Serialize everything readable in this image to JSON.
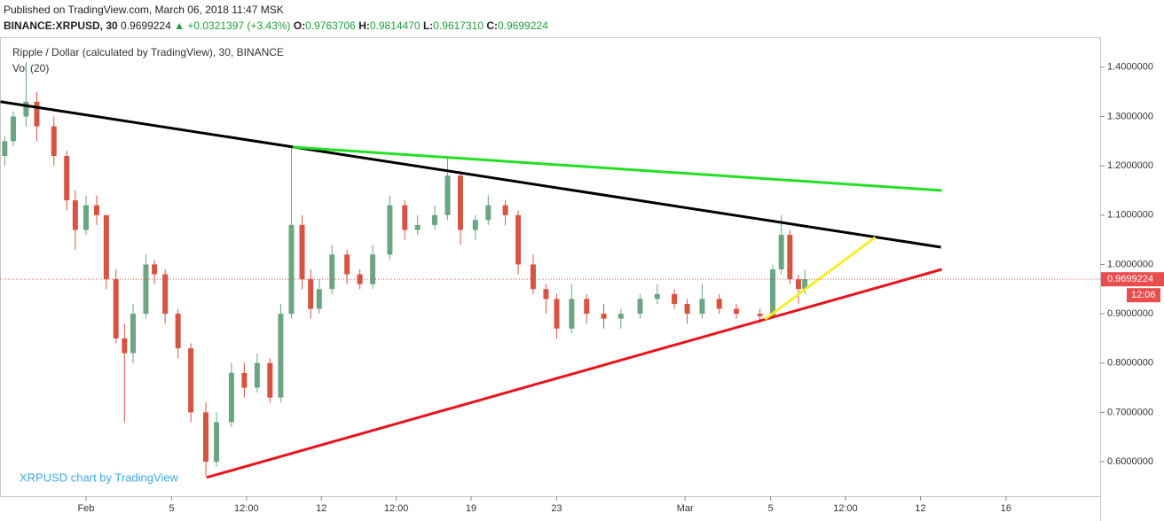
{
  "header": {
    "published": "Published on TradingView.com, March 06, 2018 11:47 MSK",
    "symbol": "BINANCE:XRPUSD, 30",
    "last": "0.9699224",
    "change": "▲ +0.0321397 (+3.43%)",
    "o_label": "O:",
    "o_value": "0.9763706",
    "h_label": "H:",
    "h_value": "0.9814470",
    "l_label": "L:",
    "l_value": "0.9617310",
    "c_label": "C:",
    "c_value": "0.9699224"
  },
  "chart_data": {
    "type": "candlestick",
    "title": "Ripple / Dollar (calculated by TradingView), 30, BINANCE",
    "subtitle": "Vol (20)",
    "watermark": "XRPUSD chart by TradingView",
    "up_color": "#6ba583",
    "down_color": "#d75442",
    "x": [
      -3.8,
      -3.4,
      -2.8,
      -2.3,
      -1.5,
      -0.9,
      -0.5,
      0,
      0.5,
      0.95,
      1.4,
      1.8,
      2.2,
      2.8,
      3.2,
      3.7,
      4.3,
      4.9,
      5.6,
      6.1,
      6.8,
      7.4,
      8.0,
      8.6,
      9.1,
      9.6,
      10.1,
      10.5,
      10.9,
      11.5,
      12.2,
      12.8,
      13.4,
      14.2,
      14.9,
      15.5,
      16.3,
      16.9,
      17.5,
      18.2,
      18.8,
      19.6,
      20.2,
      20.9,
      21.5,
      22.0,
      22.7,
      23.4,
      24.2,
      25.0,
      25.9,
      26.7,
      27.5,
      28.1,
      28.8,
      29.6,
      30.4,
      31.5,
      32.1,
      32.5,
      32.9,
      33.3,
      33.6
    ],
    "open": [
      1.22,
      1.25,
      1.3,
      1.33,
      1.28,
      1.22,
      1.13,
      1.07,
      1.12,
      1.1,
      0.97,
      0.85,
      0.82,
      0.9,
      1.0,
      0.98,
      0.9,
      0.83,
      0.7,
      0.6,
      0.68,
      0.78,
      0.75,
      0.8,
      0.73,
      0.9,
      1.08,
      0.97,
      0.91,
      0.95,
      1.02,
      0.98,
      0.96,
      1.02,
      1.12,
      1.07,
      1.08,
      1.1,
      1.18,
      1.07,
      1.09,
      1.12,
      1.1,
      1.0,
      0.95,
      0.93,
      0.87,
      0.93,
      0.9,
      0.89,
      0.9,
      0.93,
      0.94,
      0.92,
      0.9,
      0.93,
      0.91,
      0.9,
      0.895,
      0.99,
      1.06,
      0.97,
      0.95
    ],
    "high": [
      1.26,
      1.31,
      1.41,
      1.35,
      1.3,
      1.23,
      1.15,
      1.14,
      1.14,
      1.1,
      0.99,
      0.88,
      0.92,
      1.02,
      1.01,
      0.99,
      0.91,
      0.84,
      0.72,
      0.7,
      0.8,
      0.8,
      0.82,
      0.81,
      0.92,
      1.24,
      1.1,
      0.99,
      0.97,
      1.04,
      1.03,
      0.99,
      1.04,
      1.14,
      1.13,
      1.1,
      1.12,
      1.22,
      1.19,
      1.1,
      1.14,
      1.13,
      1.11,
      1.02,
      0.96,
      0.94,
      0.96,
      0.94,
      0.92,
      0.91,
      0.94,
      0.96,
      0.95,
      0.93,
      0.96,
      0.94,
      0.92,
      0.91,
      1.0,
      1.1,
      1.07,
      0.98,
      0.99
    ],
    "low": [
      1.2,
      1.24,
      1.28,
      1.25,
      1.2,
      1.11,
      1.03,
      1.06,
      1.08,
      0.95,
      0.84,
      0.68,
      0.8,
      0.89,
      0.96,
      0.88,
      0.81,
      0.68,
      0.57,
      0.59,
      0.67,
      0.73,
      0.74,
      0.72,
      0.72,
      0.89,
      0.95,
      0.89,
      0.9,
      0.94,
      0.96,
      0.95,
      0.95,
      1.01,
      1.05,
      1.06,
      1.07,
      1.09,
      1.04,
      1.05,
      1.08,
      1.08,
      0.98,
      0.94,
      0.9,
      0.85,
      0.86,
      0.88,
      0.87,
      0.87,
      0.89,
      0.92,
      0.91,
      0.88,
      0.89,
      0.9,
      0.89,
      0.88,
      0.89,
      0.98,
      0.96,
      0.92,
      0.94
    ],
    "close": [
      1.25,
      1.3,
      1.33,
      1.28,
      1.22,
      1.13,
      1.07,
      1.12,
      1.1,
      0.97,
      0.85,
      0.82,
      0.9,
      1.0,
      0.98,
      0.9,
      0.83,
      0.7,
      0.6,
      0.68,
      0.78,
      0.75,
      0.8,
      0.73,
      0.9,
      1.08,
      0.97,
      0.91,
      0.95,
      1.02,
      0.98,
      0.96,
      1.02,
      1.12,
      1.07,
      1.08,
      1.1,
      1.18,
      1.07,
      1.09,
      1.12,
      1.1,
      1.0,
      0.95,
      0.93,
      0.87,
      0.93,
      0.9,
      0.89,
      0.9,
      0.93,
      0.94,
      0.92,
      0.9,
      0.93,
      0.91,
      0.9,
      0.895,
      0.99,
      1.06,
      0.97,
      0.95,
      0.97
    ],
    "trendlines": [
      {
        "color": "#000000",
        "x": [
          -4,
          39.96
        ],
        "y": [
          1.33,
          1.035
        ]
      },
      {
        "color": "#22e022",
        "x": [
          9.67,
          40.0
        ],
        "y": [
          1.238,
          1.15
        ]
      },
      {
        "color": "#e8141c",
        "x": [
          5.64,
          40.0
        ],
        "y": [
          0.568,
          0.99
        ]
      },
      {
        "color": "#f5ef2a",
        "x": [
          31.74,
          36.89
        ],
        "y": [
          0.889,
          1.055
        ]
      }
    ],
    "last_price": 0.9699224,
    "countdown": "12:06",
    "xlim": [
      -4.02,
      47.4
    ],
    "ylim": [
      0.53,
      1.459
    ],
    "xticks": [
      {
        "value": 0,
        "label": "Feb"
      },
      {
        "value": 4,
        "label": "5"
      },
      {
        "value": 7.5,
        "label": "12:00"
      },
      {
        "value": 11,
        "label": "12"
      },
      {
        "value": 14.5,
        "label": "12:00"
      },
      {
        "value": 18,
        "label": "19"
      },
      {
        "value": 22,
        "label": "23"
      },
      {
        "value": 28,
        "label": "Mar"
      },
      {
        "value": 32,
        "label": "5"
      },
      {
        "value": 35.5,
        "label": "12:00"
      },
      {
        "value": 39,
        "label": "12"
      },
      {
        "value": 43,
        "label": "16"
      }
    ],
    "yticks": [
      {
        "value": 0.6,
        "label": "0.6000000"
      },
      {
        "value": 0.7,
        "label": "0.7000000"
      },
      {
        "value": 0.8,
        "label": "0.8000000"
      },
      {
        "value": 0.9,
        "label": "0.9000000"
      },
      {
        "value": 1.0,
        "label": "1.0000000"
      },
      {
        "value": 1.1,
        "label": "1.1000000"
      },
      {
        "value": 1.2,
        "label": "1.2000000"
      },
      {
        "value": 1.3,
        "label": "1.3000000"
      },
      {
        "value": 1.4,
        "label": "1.4000000"
      }
    ]
  }
}
